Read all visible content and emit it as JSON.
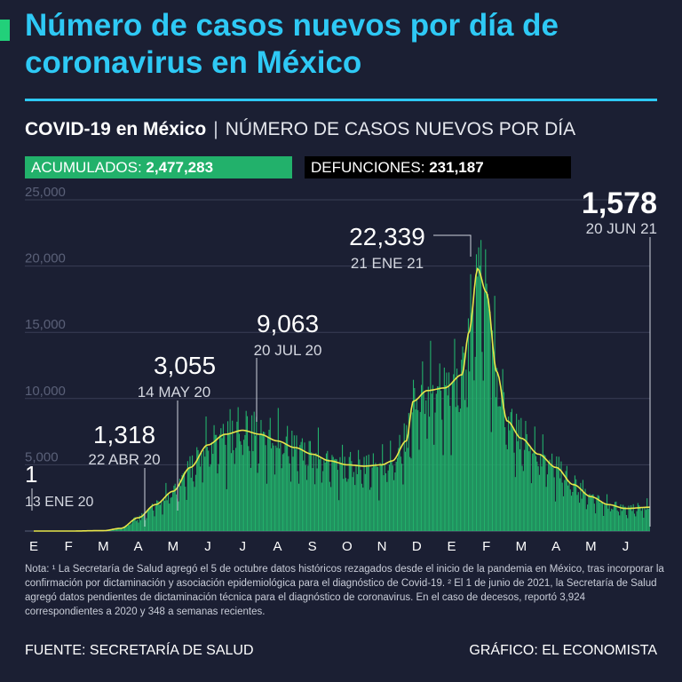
{
  "header": {
    "title": "Número de casos nuevos por día de coronavirus en México",
    "subtitle_bold": "COVID-19 en México",
    "subtitle_sep": "|",
    "subtitle_light": "NÚMERO DE CASOS NUEVOS POR DÍA"
  },
  "badges": {
    "acumulados_label": "ACUMULADOS:",
    "acumulados_value": "2,477,283",
    "defunciones_label": "DEFUNCIONES:",
    "defunciones_value": "231,187"
  },
  "colors": {
    "background": "#1b1f33",
    "title": "#2ec9f5",
    "bars": "#22b16b",
    "smooth_line": "#e8e64a",
    "badge_acumulados": "#22b16b",
    "badge_defunciones": "#000000"
  },
  "chart_data": {
    "type": "bar",
    "title": "NÚMERO DE CASOS NUEVOS POR DÍA",
    "xlabel": "",
    "ylabel": "",
    "ylim": [
      0,
      25000
    ],
    "y_ticks": [
      5000,
      10000,
      15000,
      20000,
      25000
    ],
    "y_tick_labels": [
      "5,000",
      "10,000",
      "15,000",
      "20,000",
      "25,000"
    ],
    "x_tick_labels": [
      "E",
      "F",
      "M",
      "A",
      "M",
      "J",
      "J",
      "A",
      "S",
      "O",
      "N",
      "D",
      "E",
      "F",
      "M",
      "A",
      "M",
      "J"
    ],
    "x_range_months": [
      0,
      17.7
    ],
    "series": [
      {
        "type": "line",
        "smooth": true,
        "points": [
          [
            0,
            0
          ],
          [
            1,
            0
          ],
          [
            2,
            30
          ],
          [
            2.5,
            200
          ],
          [
            3,
            1000
          ],
          [
            3.5,
            2000
          ],
          [
            4,
            3000
          ],
          [
            4.5,
            4800
          ],
          [
            5,
            6500
          ],
          [
            5.5,
            7300
          ],
          [
            6,
            7600
          ],
          [
            6.5,
            7300
          ],
          [
            7,
            6800
          ],
          [
            7.5,
            6300
          ],
          [
            8,
            5800
          ],
          [
            8.5,
            5300
          ],
          [
            9,
            5000
          ],
          [
            9.5,
            4900
          ],
          [
            10,
            5000
          ],
          [
            10.3,
            5300
          ],
          [
            10.7,
            6800
          ],
          [
            10.9,
            9800
          ],
          [
            11.3,
            10600
          ],
          [
            11.8,
            10800
          ],
          [
            12.3,
            11800
          ],
          [
            12.5,
            15000
          ],
          [
            12.75,
            19800
          ],
          [
            13,
            18000
          ],
          [
            13.3,
            12000
          ],
          [
            13.6,
            8300
          ],
          [
            14,
            7000
          ],
          [
            14.5,
            5800
          ],
          [
            15,
            4800
          ],
          [
            15.5,
            3500
          ],
          [
            16,
            2600
          ],
          [
            16.5,
            2000
          ],
          [
            17,
            1700
          ],
          [
            17.7,
            1800
          ]
        ]
      }
    ],
    "annotations": [
      {
        "value_label": "1",
        "date_label": "13 ENE 20",
        "x_month": 0,
        "y": 1
      },
      {
        "value_label": "1,318",
        "date_label": "22 ABR 20",
        "x_month": 3.7,
        "y": 1318
      },
      {
        "value_label": "3,055",
        "date_label": "14 MAY 20",
        "x_month": 4.45,
        "y": 3055
      },
      {
        "value_label": "9,063",
        "date_label": "20 JUL 20",
        "x_month": 6.65,
        "y": 9063
      },
      {
        "value_label": "22,339",
        "date_label": "21 ENE 21",
        "x_month": 12.7,
        "y": 22339
      },
      {
        "value_label": "1,578",
        "date_label": "20 JUN 21",
        "x_month": 17.65,
        "y": 1578
      }
    ]
  },
  "notes": {
    "text": "Nota: ¹ La Secretaría de Salud agregó el 5 de octubre datos históricos rezagados desde el inicio de la pandemia en México, tras incorporar la confirmación por dictaminación y asociación epidemiológica para el diagnóstico de Covid-19. ² El 1 de junio de 2021, la Secretaría de Salud agregó datos pendientes de dictaminación técnica para el diagnóstico de coronavirus. En el caso de decesos, reportó 3,924 correspondientes a 2020 y 348 a semanas recientes."
  },
  "footer": {
    "source": "FUENTE: SECRETARÍA DE SALUD",
    "credit": "GRÁFICO: EL ECONOMISTA"
  }
}
